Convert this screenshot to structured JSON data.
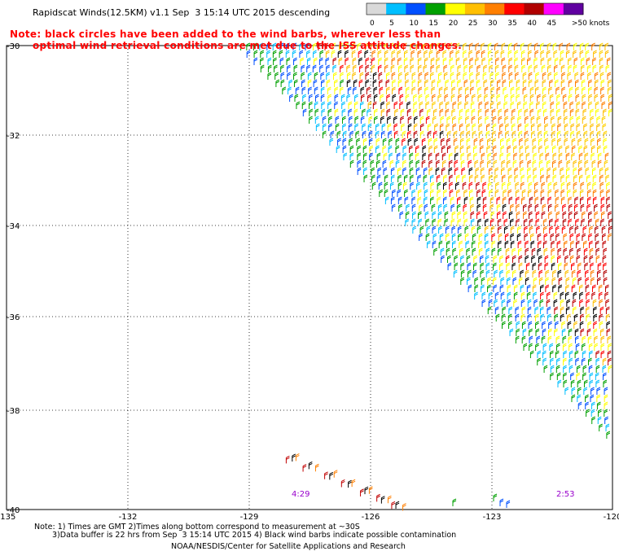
{
  "header": {
    "title": "Rapidscat Winds(12.5KM) v1.1 Sep  3 15:14 UTC 2015 descending"
  },
  "notice": {
    "line1": "Note: black circles have been added to the wind barbs, wherever less than",
    "line2": "optimal wind retrieval conditions are met due to the ISS attitude changes."
  },
  "colorbar": {
    "ticks": [
      "0",
      "5",
      "10",
      "15",
      "20",
      "25",
      "30",
      "35",
      "40",
      "45",
      ">50 knots"
    ],
    "colors": [
      "#d9d9d9",
      "#00bfff",
      "#0050ff",
      "#00a000",
      "#ffff00",
      "#ffbf00",
      "#ff7f00",
      "#ff0000",
      "#b00000",
      "#ff00ff",
      "#6000a0"
    ]
  },
  "map": {
    "lat_labels": [
      "-30",
      "-32",
      "-34",
      "-36",
      "-38",
      "-40"
    ],
    "lon_labels": [
      "-135",
      "-132",
      "-129",
      "-126",
      "-123",
      "-120"
    ],
    "time_labels": [
      "4:29",
      "2:53"
    ],
    "time_label_color": "#9900cc"
  },
  "footer": {
    "note1": "Note: 1) Times are GMT 2)Times along bottom correspond to measurement at ~30S",
    "note2": "3)Data buffer is 22 hrs from Sep  3 15:14 UTC 2015 4) Black wind barbs indicate possible contamination",
    "credit": "NOAA/NESDIS/Center for Satellite Applications and Research"
  }
}
